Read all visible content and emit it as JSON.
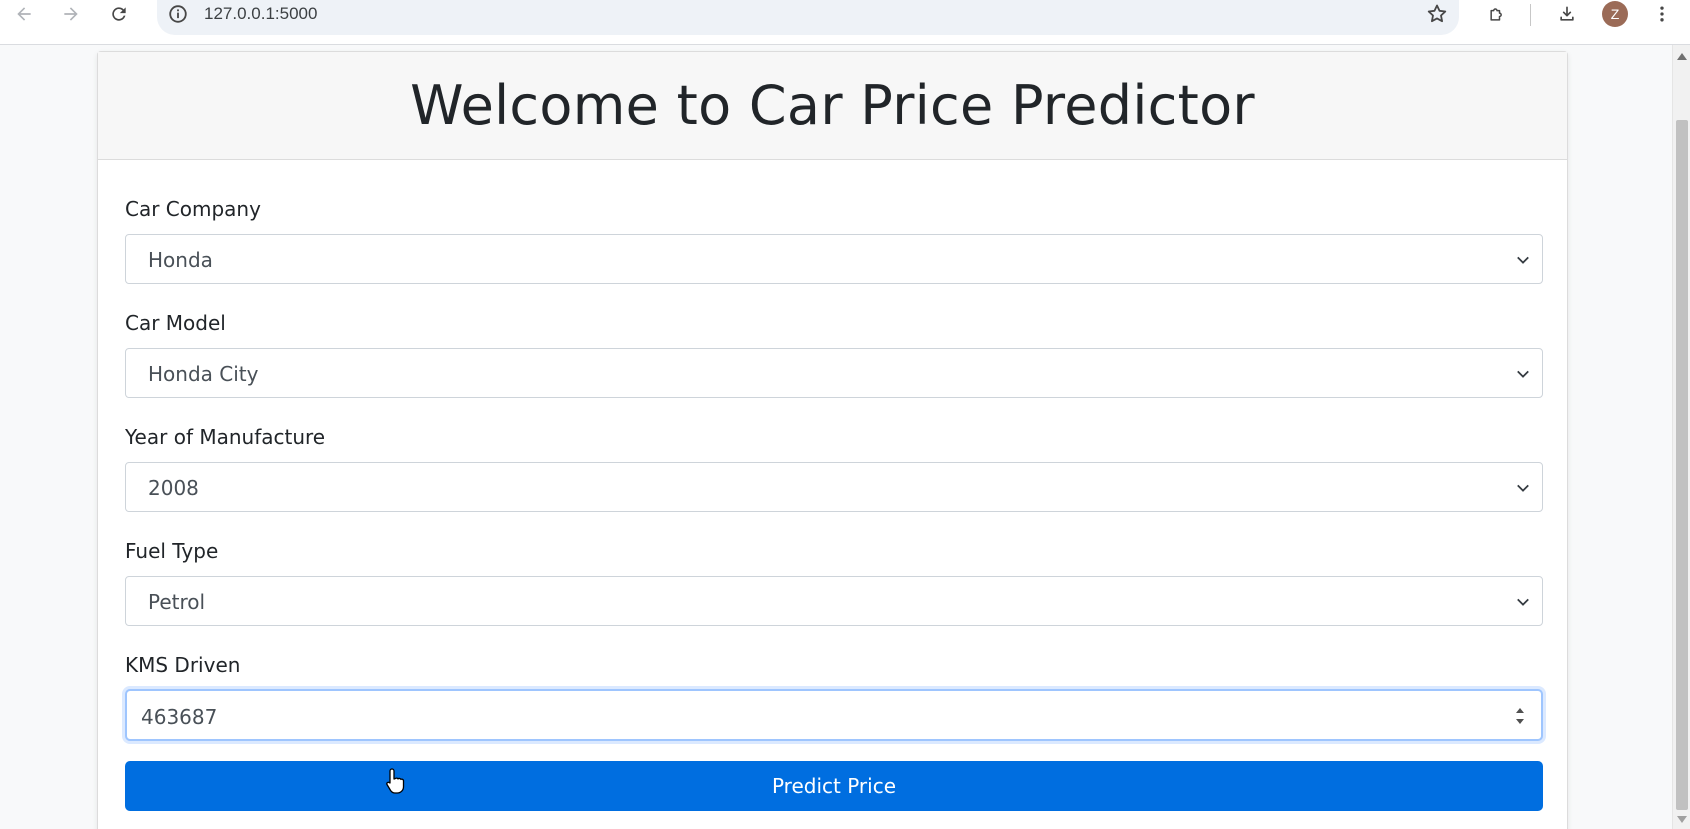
{
  "browser": {
    "url": "127.0.0.1:5000",
    "avatar_initial": "Z",
    "icons": [
      "back-icon",
      "forward-icon",
      "reload-icon",
      "site-info-icon",
      "bookmark-star-icon",
      "extensions-icon",
      "download-icon",
      "menu-kebab-icon"
    ]
  },
  "page": {
    "title": "Welcome to Car Price Predictor",
    "fields": {
      "company": {
        "label": "Car Company",
        "value": "Honda"
      },
      "model": {
        "label": "Car Model",
        "value": "Honda City"
      },
      "year": {
        "label": "Year of Manufacture",
        "value": "2008"
      },
      "fuel": {
        "label": "Fuel Type",
        "value": "Petrol"
      },
      "kms": {
        "label": "KMS Driven",
        "value": "463687"
      }
    },
    "submit_label": "Predict Price"
  },
  "colors": {
    "primary": "#006ee0",
    "focus_border": "#9ec5fe"
  }
}
